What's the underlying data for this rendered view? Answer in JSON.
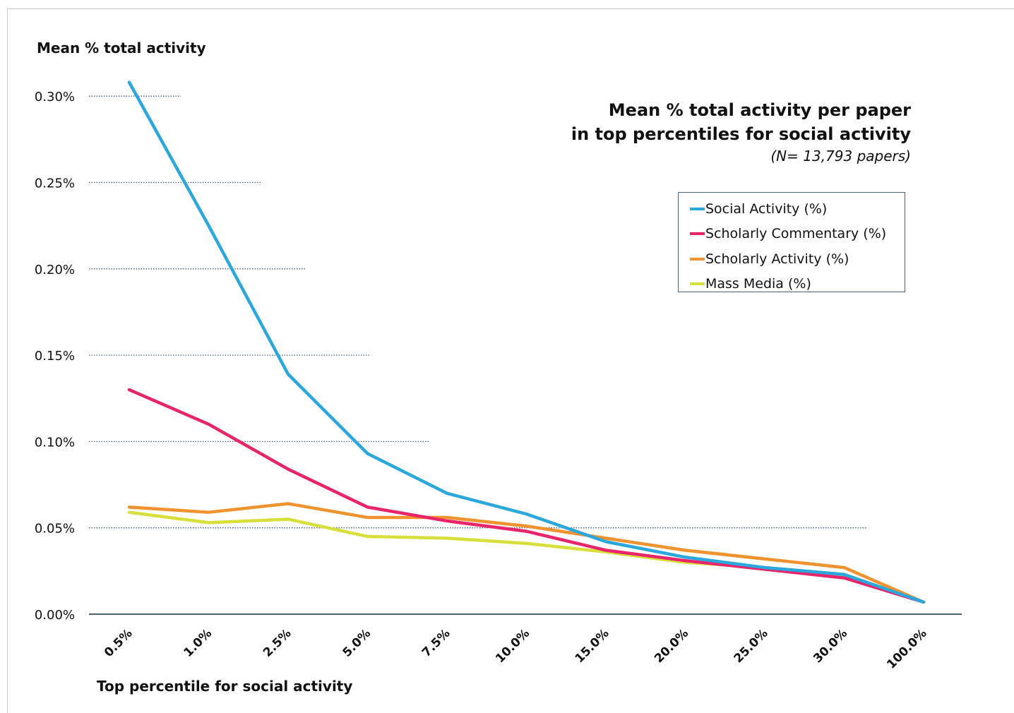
{
  "chart_data": {
    "type": "line",
    "title": "Mean % total activity per paper",
    "title_line2": "in top percentiles for social activity",
    "subtitle": "(N= 13,793 papers)",
    "ylabel": "Mean % total activity",
    "xlabel": "Top percentile for social activity",
    "categories": [
      "0.5%",
      "1.0%",
      "2.5%",
      "5.0%",
      "7.5%",
      "10.0%",
      "15.0%",
      "20.0%",
      "25.0%",
      "30.0%",
      "100.0%"
    ],
    "ylim": [
      0,
      0.3
    ],
    "yticks": [
      0,
      0.05,
      0.1,
      0.15,
      0.2,
      0.25,
      0.3
    ],
    "ytick_labels": [
      "0.00%",
      "0.05%",
      "0.10%",
      "0.15%",
      "0.20%",
      "0.25%",
      "0.30%"
    ],
    "grid": "dotted horizontal",
    "legend_position": "top-right",
    "series": [
      {
        "name": "Social Activity (%)",
        "color": "#2aa7dd",
        "values": [
          0.308,
          0.225,
          0.139,
          0.093,
          0.07,
          0.058,
          0.042,
          0.033,
          0.027,
          0.023,
          0.007
        ]
      },
      {
        "name": "Scholarly Commentary (%)",
        "color": "#e8246b",
        "values": [
          0.13,
          0.11,
          0.084,
          0.062,
          0.054,
          0.048,
          0.037,
          0.031,
          0.026,
          0.021,
          0.007
        ]
      },
      {
        "name": "Scholarly Activity (%)",
        "color": "#f0922e",
        "values": [
          0.062,
          0.059,
          0.064,
          0.056,
          0.056,
          0.051,
          0.044,
          0.037,
          0.032,
          0.027,
          0.007
        ]
      },
      {
        "name": "Mass Media (%)",
        "color": "#d7df3a",
        "values": [
          0.059,
          0.053,
          0.055,
          0.045,
          0.044,
          0.041,
          0.036,
          0.03,
          0.027,
          0.023,
          0.007
        ]
      }
    ]
  }
}
